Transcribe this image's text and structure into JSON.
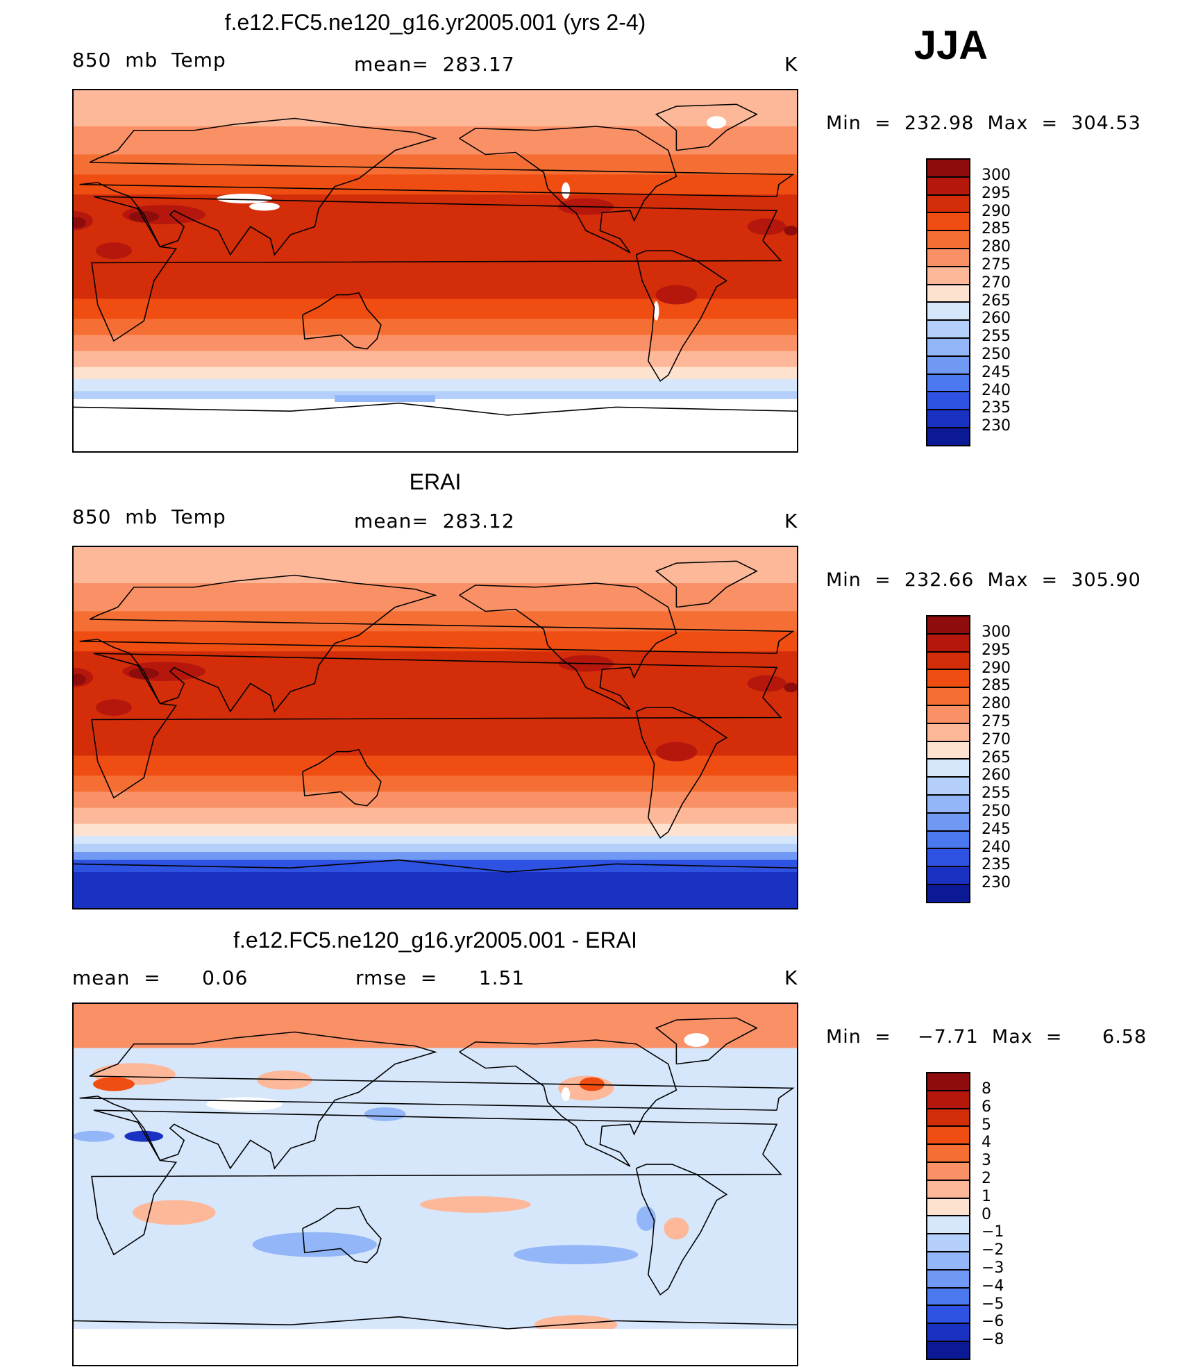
{
  "season": "JJA",
  "panels": [
    {
      "title": "f.e12.FC5.ne120_g16.yr2005.001 (yrs 2-4)",
      "left_label": "850  mb  Temp",
      "center_label": "mean=  283.17",
      "units": "K",
      "minmax": "Min  =  232.98  Max  =  304.53",
      "field": "model"
    },
    {
      "title": "ERAI",
      "left_label": "850  mb  Temp",
      "center_label": "mean=  283.12",
      "units": "K",
      "minmax": "Min  =  232.66  Max  =  305.90",
      "field": "obs"
    },
    {
      "title": "f.e12.FC5.ne120_g16.yr2005.001 - ERAI",
      "left_label": "mean  =      0.06",
      "center_label": "rmse  =      1.51",
      "units": "K",
      "minmax": "Min  =    −7.71  Max  =      6.58",
      "field": "diff"
    }
  ],
  "legend_temp": {
    "labels": [
      "300",
      "295",
      "290",
      "285",
      "280",
      "275",
      "270",
      "265",
      "260",
      "255",
      "250",
      "245",
      "240",
      "235",
      "230"
    ],
    "colors": [
      "#8e0c0c",
      "#b5170d",
      "#d32d0a",
      "#f04d12",
      "#f56f35",
      "#fa9166",
      "#fdb89a",
      "#fde2cf",
      "#d6e6fb",
      "#b3cffa",
      "#92b6f7",
      "#6f99f3",
      "#4c78ef",
      "#2e52e1",
      "#1a32c2",
      "#0b1a94"
    ]
  },
  "legend_diff": {
    "labels": [
      "8",
      "6",
      "5",
      "4",
      "3",
      "2",
      "1",
      "0",
      "−1",
      "−2",
      "−3",
      "−4",
      "−5",
      "−6",
      "−8"
    ],
    "colors": [
      "#8e0c0c",
      "#b5170d",
      "#d32d0a",
      "#f04d12",
      "#f56f35",
      "#fa9166",
      "#fdb89a",
      "#fde2cf",
      "#d6e6fb",
      "#b3cffa",
      "#92b6f7",
      "#6f99f3",
      "#4c78ef",
      "#2e52e1",
      "#1a32c2",
      "#0b1a94"
    ]
  }
}
